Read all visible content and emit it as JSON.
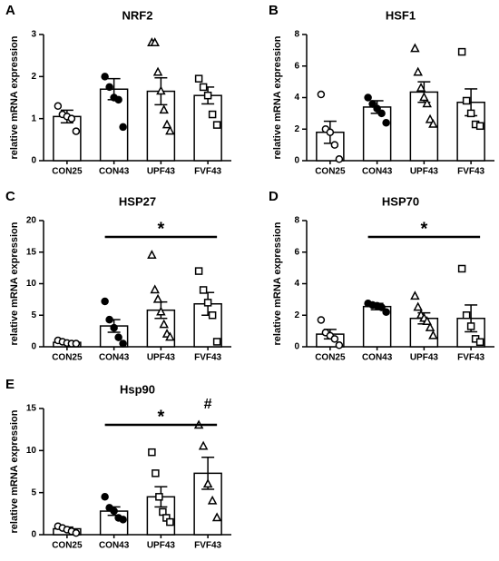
{
  "chart_data": [
    {
      "type": "bar",
      "panel": "A",
      "title": "NRF2",
      "ylabel": "relative mRNA expression",
      "categories": [
        "CON25",
        "CON43",
        "UPF43",
        "FVF43"
      ],
      "values": [
        1.05,
        1.7,
        1.65,
        1.55
      ],
      "errors": [
        0.15,
        0.25,
        0.32,
        0.2
      ],
      "points": [
        [
          1.3,
          1.1,
          1.05,
          1.0,
          0.7
        ],
        [
          2.0,
          1.75,
          1.5,
          1.45,
          0.8
        ],
        [
          2.8,
          2.8,
          2.1,
          1.65,
          1.2,
          0.85,
          0.7
        ],
        [
          1.95,
          1.75,
          1.55,
          1.1,
          0.85
        ]
      ],
      "markers": [
        "open-circle",
        "filled-circle",
        "open-triangle",
        "open-square"
      ],
      "color": "#ffffff",
      "ylim": [
        0,
        3
      ],
      "yticks": [
        0,
        1,
        2,
        3
      ],
      "annotations": []
    },
    {
      "type": "bar",
      "panel": "B",
      "title": "HSF1",
      "ylabel": "relative mRNA expression",
      "categories": [
        "CON25",
        "CON43",
        "UPF43",
        "FVF43"
      ],
      "values": [
        1.8,
        3.4,
        4.35,
        3.7
      ],
      "errors": [
        0.7,
        0.4,
        0.65,
        0.85
      ],
      "points": [
        [
          4.2,
          2.0,
          1.8,
          1.0,
          0.1
        ],
        [
          4.0,
          3.6,
          3.3,
          3.0,
          2.4
        ],
        [
          7.1,
          5.6,
          4.6,
          4.0,
          3.6,
          2.6,
          2.3
        ],
        [
          6.9,
          3.8,
          3.0,
          2.3,
          2.2
        ]
      ],
      "markers": [
        "open-circle",
        "filled-circle",
        "open-triangle",
        "open-square"
      ],
      "color": "#ffffff",
      "ylim": [
        0,
        8
      ],
      "yticks": [
        0,
        2,
        4,
        6,
        8
      ],
      "annotations": []
    },
    {
      "type": "bar",
      "panel": "C",
      "title": "HSP27",
      "ylabel": "relative mRNA expression",
      "categories": [
        "CON25",
        "CON43",
        "UPF43",
        "FVF43"
      ],
      "values": [
        0.7,
        3.3,
        5.8,
        6.8
      ],
      "errors": [
        0.2,
        1.0,
        1.3,
        1.8
      ],
      "points": [
        [
          1.0,
          0.8,
          0.6,
          0.5,
          0.5
        ],
        [
          7.2,
          4.3,
          3.0,
          1.5,
          0.5
        ],
        [
          14.5,
          9.0,
          7.5,
          5.5,
          3.5,
          2.0,
          1.5
        ],
        [
          12.0,
          9.0,
          7.0,
          5.0,
          0.8
        ]
      ],
      "markers": [
        "open-circle",
        "filled-circle",
        "open-triangle",
        "open-square"
      ],
      "color": "#ffffff",
      "ylim": [
        0,
        20
      ],
      "yticks": [
        0,
        5,
        10,
        15,
        20
      ],
      "annotations": [
        {
          "text": "*",
          "from": "CON43",
          "to": "FVF43"
        }
      ]
    },
    {
      "type": "bar",
      "panel": "D",
      "title": "HSP70",
      "ylabel": "relative mRNA expression",
      "categories": [
        "CON25",
        "CON43",
        "UPF43",
        "FVF43"
      ],
      "values": [
        0.8,
        2.55,
        1.8,
        1.8
      ],
      "errors": [
        0.3,
        0.2,
        0.35,
        0.85
      ],
      "points": [
        [
          1.7,
          0.9,
          0.7,
          0.5,
          0.1
        ],
        [
          2.75,
          2.65,
          2.6,
          2.5,
          2.2
        ],
        [
          3.2,
          2.5,
          2.0,
          1.8,
          1.6,
          1.2,
          0.7
        ],
        [
          4.95,
          2.0,
          1.3,
          0.5,
          0.3
        ]
      ],
      "markers": [
        "open-circle",
        "filled-circle",
        "open-triangle",
        "open-square"
      ],
      "color": "#ffffff",
      "ylim": [
        0,
        8
      ],
      "yticks": [
        0,
        2,
        4,
        6,
        8
      ],
      "annotations": [
        {
          "text": "*",
          "from": "CON43",
          "to": "FVF43"
        }
      ]
    },
    {
      "type": "bar",
      "panel": "E",
      "title": "Hsp90",
      "ylabel": "relative mRNA expression",
      "categories": [
        "CON25",
        "CON43",
        "UPF43",
        "FVF43"
      ],
      "values": [
        0.7,
        2.8,
        4.5,
        7.3
      ],
      "errors": [
        0.2,
        0.5,
        1.2,
        1.9
      ],
      "points": [
        [
          1.0,
          0.8,
          0.6,
          0.4,
          0.2
        ],
        [
          4.5,
          3.2,
          2.8,
          2.0,
          1.8
        ],
        [
          9.8,
          7.3,
          4.5,
          2.7,
          2.0,
          1.5
        ],
        [
          13.0,
          10.5,
          6.0,
          4.0,
          2.0
        ]
      ],
      "markers": [
        "open-circle",
        "filled-circle",
        "open-square",
        "open-triangle"
      ],
      "color": "#ffffff",
      "ylim": [
        0,
        15
      ],
      "yticks": [
        0,
        5,
        10,
        15
      ],
      "annotations": [
        {
          "text": "*",
          "from": "CON43",
          "to": "FVF43"
        },
        {
          "text": "#",
          "at": "FVF43"
        }
      ]
    }
  ]
}
